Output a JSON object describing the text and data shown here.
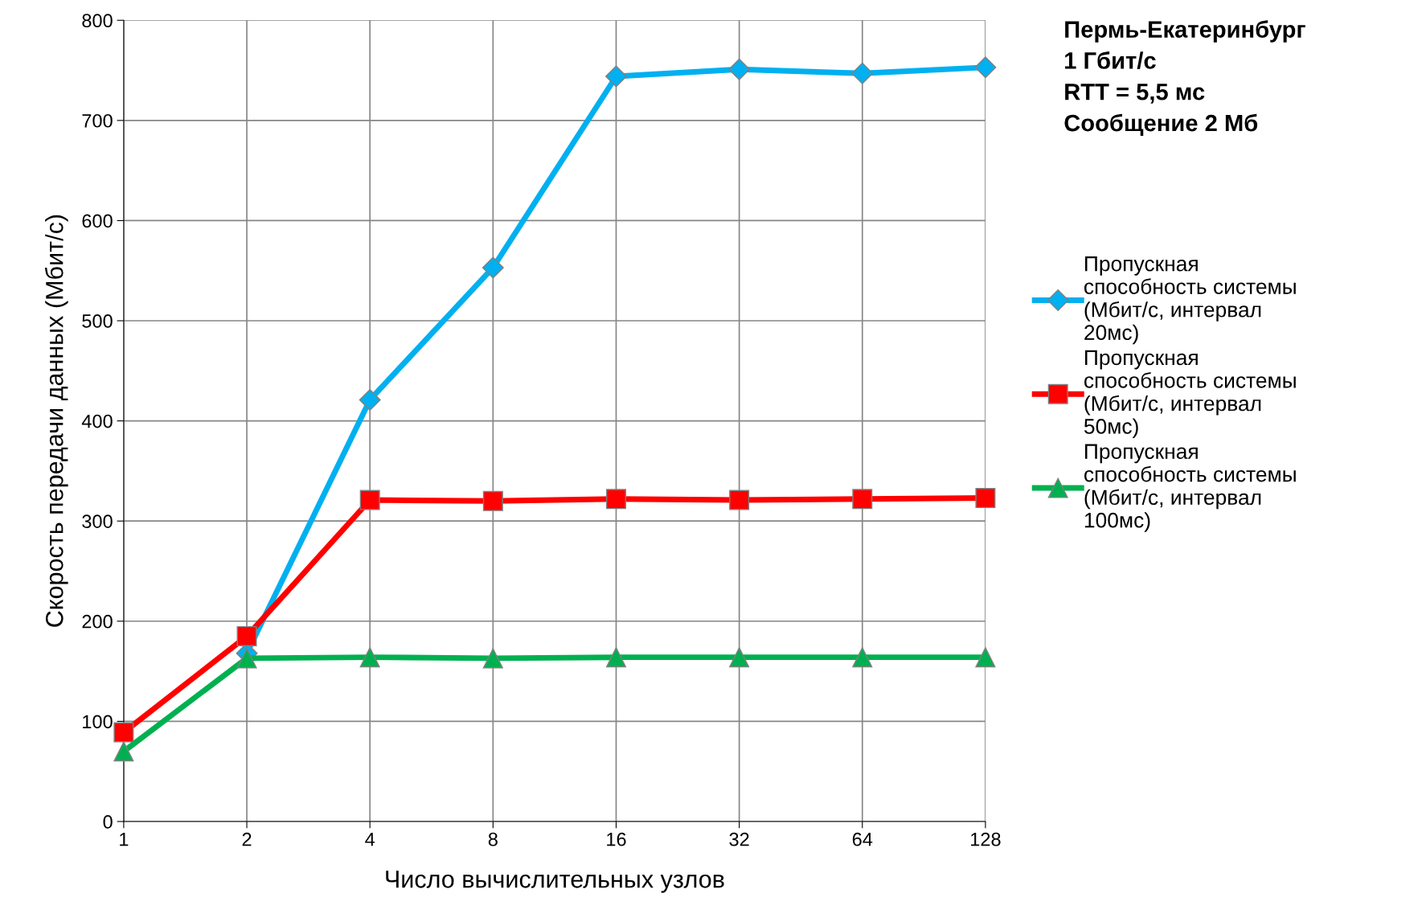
{
  "chart_data": {
    "type": "line",
    "title": "Пермь-Екатеринбург\n1 Гбит/с\nRTT = 5,5 мс\nСообщение 2 Мб",
    "xlabel": "Число вычислительных узлов",
    "ylabel": "Скорость передачи данных (Мбит/с)",
    "categories": [
      "1",
      "2",
      "4",
      "8",
      "16",
      "32",
      "64",
      "128"
    ],
    "series": [
      {
        "name": "Пропускная\nспособность системы\n(Мбит/с, интервал\n20мс)",
        "color": "#00b0f0",
        "marker": "diamond",
        "values": [
          null,
          168,
          421,
          553,
          744,
          751,
          747,
          753
        ]
      },
      {
        "name": "Пропускная\nспособность системы\n(Мбит/с, интервал\n50мс)",
        "color": "#ff0000",
        "marker": "square",
        "values": [
          89,
          185,
          321,
          320,
          322,
          321,
          322,
          323
        ]
      },
      {
        "name": "Пропускная\nспособность системы\n(Мбит/с, интервал\n100мс)",
        "color": "#00b050",
        "marker": "triangle",
        "values": [
          70,
          163,
          164,
          163,
          164,
          164,
          164,
          164
        ]
      }
    ],
    "ylim": [
      0,
      800
    ],
    "yticks": [
      0,
      100,
      200,
      300,
      400,
      500,
      600,
      700,
      800
    ],
    "grid": true,
    "legend": "right",
    "line_style": "solid"
  }
}
